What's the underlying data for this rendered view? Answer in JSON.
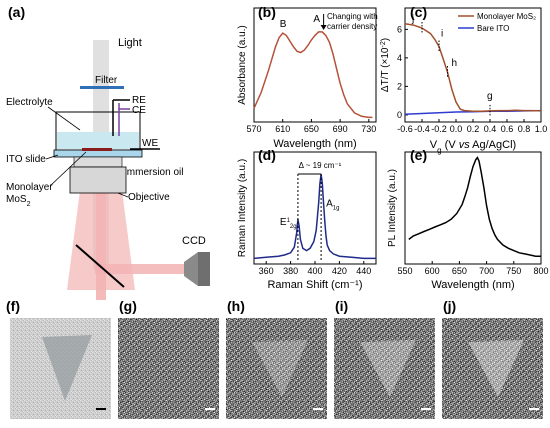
{
  "panel_labels": [
    "(a)",
    "(b)",
    "(c)",
    "(d)",
    "(e)",
    "(f)",
    "(g)",
    "(h)",
    "(i)",
    "(j)"
  ],
  "schematic": {
    "light": "Light",
    "filter": "Filter",
    "electrolyte": "Electrolyte",
    "re": "RE",
    "ce": "CE",
    "we": "WE",
    "ito_slide": "ITO slide",
    "monolayer": "Monolayer",
    "mos2": "MoS",
    "mos2_sub": "2",
    "immersion_oil": "Immersion oil",
    "objective": "Objective",
    "ccd": "CCD"
  },
  "colors": {
    "absorbance": "#b5533a",
    "monolayer": "#a0502c",
    "ito": "#2f3bd1",
    "raman": "#1f2a8a",
    "pl": "#000000",
    "beam": "#f3b3b3"
  },
  "chart_data": [
    {
      "id": "b",
      "type": "line",
      "xlabel": "Wavelength (nm)",
      "ylabel": "Absorbance (a.u.)",
      "xlim": [
        570,
        740
      ],
      "xticks": [
        570,
        610,
        650,
        690,
        730
      ],
      "ylim": [
        0,
        1
      ],
      "peak_labels": [
        "B",
        "A"
      ],
      "annotation": [
        "Changing with",
        "carrier density"
      ],
      "x": [
        570,
        580,
        590,
        600,
        605,
        610,
        615,
        620,
        625,
        630,
        635,
        640,
        645,
        650,
        655,
        660,
        665,
        670,
        675,
        680,
        685,
        690,
        695,
        700,
        710,
        720,
        730,
        735
      ],
      "y": [
        0.12,
        0.26,
        0.45,
        0.66,
        0.74,
        0.78,
        0.76,
        0.71,
        0.66,
        0.62,
        0.61,
        0.63,
        0.67,
        0.72,
        0.76,
        0.79,
        0.79,
        0.76,
        0.7,
        0.6,
        0.47,
        0.34,
        0.24,
        0.16,
        0.08,
        0.05,
        0.04,
        0.04
      ]
    },
    {
      "id": "c",
      "type": "line",
      "xlabel_main": "V",
      "xlabel_sub": "g",
      "xlabel_rest": " (V ",
      "xlabel_vs": "vs",
      "xlabel_end": " Ag/AgCl)",
      "ylabel_main": "ΔT/T (×10",
      "ylabel_sup": "-2",
      "ylabel_end": ")",
      "xlim": [
        -0.6,
        1.0
      ],
      "xticks": [
        "-0.6",
        "-0.4",
        "-0.2",
        "0.0",
        "0.2",
        "0.4",
        "0.6",
        "0.8",
        "1.0"
      ],
      "ylim": [
        -0.5,
        7.5
      ],
      "yticks": [
        "0",
        "2",
        "4",
        "6"
      ],
      "legend": [
        "Monolayer MoS₂",
        "Bare ITO"
      ],
      "point_labels": [
        "j",
        "i",
        "h",
        "g"
      ],
      "series": [
        {
          "name": "Monolayer MoS₂",
          "x": [
            -0.6,
            -0.5,
            -0.4,
            -0.3,
            -0.25,
            -0.2,
            -0.15,
            -0.1,
            -0.05,
            0.0,
            0.05,
            0.1,
            0.2,
            0.3,
            0.4,
            0.5,
            0.6,
            0.7,
            0.8,
            0.9,
            1.0
          ],
          "y": [
            6.4,
            6.3,
            6.1,
            5.7,
            5.3,
            4.8,
            3.9,
            3.0,
            1.8,
            0.9,
            0.4,
            0.3,
            0.25,
            0.25,
            0.28,
            0.3,
            0.3,
            0.32,
            0.3,
            0.3,
            0.28
          ]
        },
        {
          "name": "Bare ITO",
          "x": [
            -0.6,
            -0.4,
            -0.2,
            0.0,
            0.2,
            0.4,
            0.6,
            0.8,
            1.0
          ],
          "y": [
            0.05,
            0.1,
            0.15,
            0.2,
            0.22,
            0.25,
            0.25,
            0.28,
            0.3
          ]
        }
      ]
    },
    {
      "id": "d",
      "type": "line",
      "xlabel": "Raman Shift (cm⁻¹)",
      "ylabel": "Raman Intensity (a.u.)",
      "xlim": [
        350,
        450
      ],
      "xticks": [
        360,
        380,
        400,
        420,
        440
      ],
      "ylim": [
        0,
        1
      ],
      "delta": "Δ ~ 19 cm⁻¹",
      "peak_e": "E",
      "peak_e_sup": "1",
      "peak_e_sub": "2g",
      "peak_a": "A",
      "peak_a_sub": "1g",
      "x": [
        350,
        360,
        370,
        375,
        380,
        383,
        385,
        386,
        387,
        388,
        390,
        393,
        396,
        399,
        401,
        403,
        404,
        405,
        406,
        407,
        408,
        409,
        410,
        412,
        415,
        420,
        430,
        440,
        450
      ],
      "y": [
        0.05,
        0.06,
        0.07,
        0.08,
        0.1,
        0.15,
        0.28,
        0.4,
        0.34,
        0.22,
        0.14,
        0.12,
        0.14,
        0.2,
        0.3,
        0.55,
        0.72,
        0.8,
        0.72,
        0.55,
        0.38,
        0.25,
        0.17,
        0.12,
        0.09,
        0.07,
        0.06,
        0.05,
        0.05
      ]
    },
    {
      "id": "e",
      "type": "line",
      "xlabel": "Wavelength (nm)",
      "ylabel": "PL Intensity (a.u.)",
      "xlim": [
        550,
        800
      ],
      "xticks": [
        550,
        600,
        650,
        700,
        750,
        800
      ],
      "ylim": [
        0,
        1
      ],
      "x": [
        557,
        565,
        575,
        585,
        595,
        605,
        615,
        625,
        635,
        645,
        655,
        660,
        665,
        670,
        675,
        680,
        683,
        686,
        690,
        695,
        700,
        705,
        710,
        715,
        720,
        730,
        740,
        750,
        760,
        770,
        780,
        790,
        800
      ],
      "y": [
        0.22,
        0.25,
        0.27,
        0.29,
        0.31,
        0.33,
        0.35,
        0.37,
        0.4,
        0.45,
        0.53,
        0.6,
        0.68,
        0.78,
        0.87,
        0.93,
        0.95,
        0.92,
        0.82,
        0.68,
        0.52,
        0.4,
        0.32,
        0.26,
        0.22,
        0.17,
        0.14,
        0.12,
        0.1,
        0.09,
        0.08,
        0.07,
        0.07
      ]
    }
  ]
}
